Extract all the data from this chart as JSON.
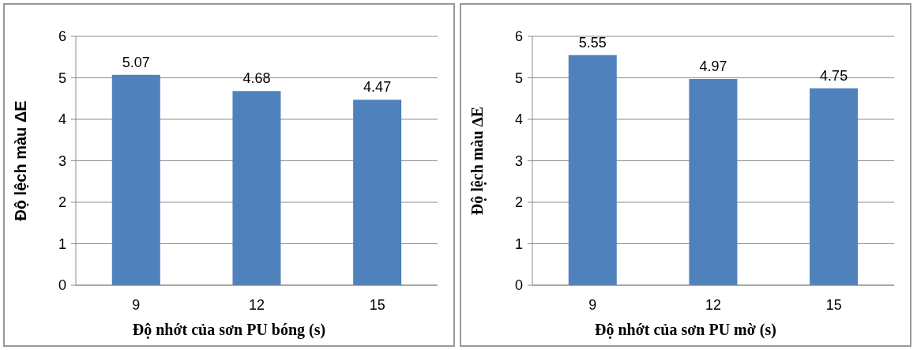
{
  "chart_data": [
    {
      "type": "bar",
      "xlabel": "Độ nhớt của sơn PU bóng (s)",
      "ylabel": "Độ lệch màu ΔE",
      "categories": [
        "9",
        "12",
        "15"
      ],
      "values": [
        5.07,
        4.68,
        4.47
      ],
      "color": "#4f81bd",
      "ylim": [
        0,
        6
      ],
      "yticks": [
        0,
        1,
        2,
        3,
        4,
        5,
        6
      ],
      "grid": "y",
      "data_labels": true
    },
    {
      "type": "bar",
      "xlabel": "Độ nhớt của sơn PU mờ (s)",
      "ylabel": "Độ lệch màu ∆E",
      "categories": [
        "9",
        "12",
        "15"
      ],
      "values": [
        5.55,
        4.97,
        4.75
      ],
      "color": "#4f81bd",
      "ylim": [
        0,
        6
      ],
      "yticks": [
        0,
        1,
        2,
        3,
        4,
        5,
        6
      ],
      "grid": "y",
      "data_labels": true
    }
  ]
}
